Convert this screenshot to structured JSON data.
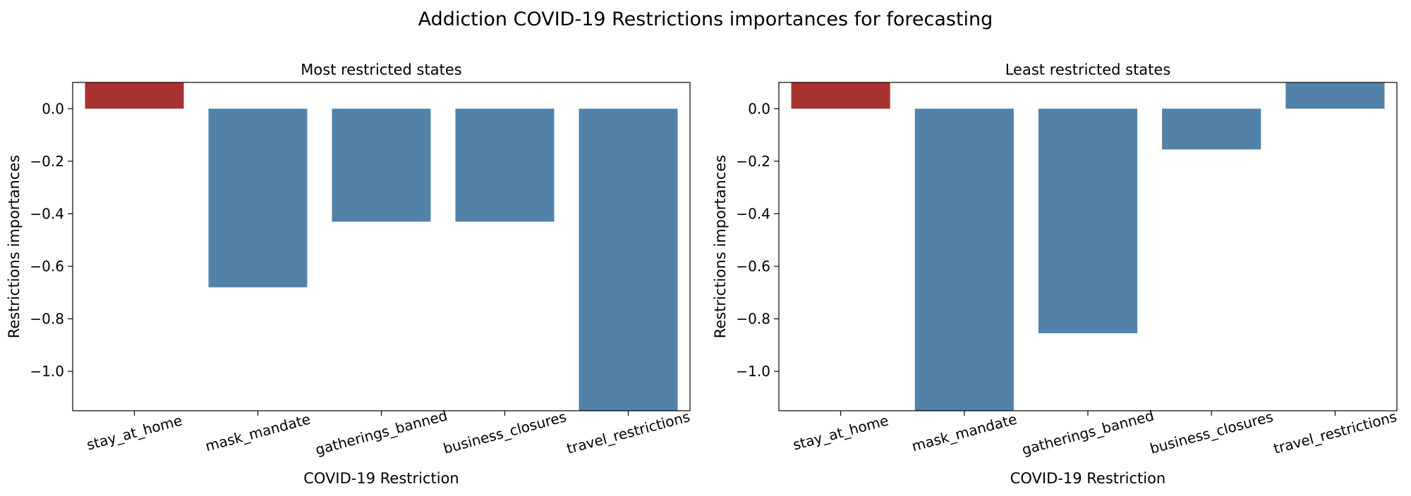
{
  "figure": {
    "title": "Addiction COVID-19 Restrictions importances for forecasting"
  },
  "colors": {
    "highlight_bar": "#a83232",
    "default_bar": "#5282a8",
    "axis": "#000000"
  },
  "chart_data": [
    {
      "type": "bar",
      "title": "Most restricted states",
      "xlabel": "COVID-19 Restriction",
      "ylabel": "Restrictions importances",
      "categories": [
        "stay_at_home",
        "mask_mandate",
        "gatherings_banned",
        "business_closures",
        "travel_restrictions"
      ],
      "values": [
        0.14,
        -0.68,
        -0.43,
        -0.43,
        -1.15
      ],
      "highlight_index": 0,
      "ylim": [
        -1.15,
        0.1
      ],
      "yticks": [
        0.0,
        -0.2,
        -0.4,
        -0.6,
        -0.8,
        -1.0
      ],
      "ytick_labels": [
        "0.0",
        "−0.2",
        "−0.4",
        "−0.6",
        "−0.8",
        "−1.0"
      ],
      "grid": false
    },
    {
      "type": "bar",
      "title": "Least restricted states",
      "xlabel": "COVID-19 Restriction",
      "ylabel": "Restrictions importances",
      "categories": [
        "stay_at_home",
        "mask_mandate",
        "gatherings_banned",
        "business_closures",
        "travel_restrictions"
      ],
      "values": [
        0.14,
        -1.15,
        -0.855,
        -0.155,
        0.14
      ],
      "highlight_index": 0,
      "ylim": [
        -1.15,
        0.1
      ],
      "yticks": [
        0.0,
        -0.2,
        -0.4,
        -0.6,
        -0.8,
        -1.0
      ],
      "ytick_labels": [
        "0.0",
        "−0.2",
        "−0.4",
        "−0.6",
        "−0.8",
        "−1.0"
      ],
      "grid": false
    }
  ]
}
